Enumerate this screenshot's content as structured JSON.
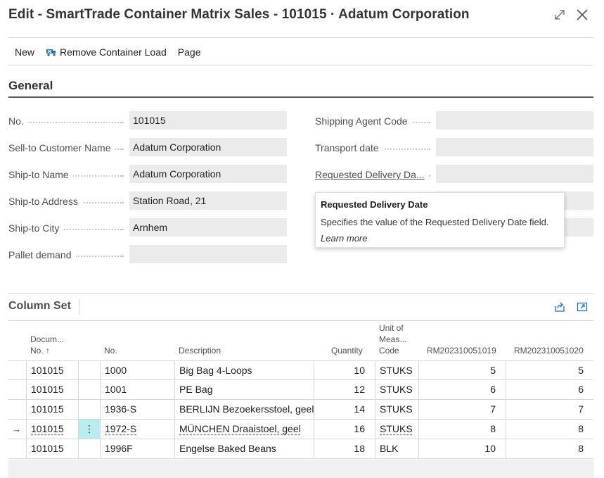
{
  "window": {
    "title": "Edit - SmartTrade Container Matrix Sales - 101015 · Adatum Corporation",
    "expand_icon": "expand-icon",
    "close_icon": "close-icon"
  },
  "actions": {
    "new_label": "New",
    "remove_container_load_label": "Remove Container Load",
    "page_label": "Page"
  },
  "general": {
    "title": "General",
    "left_fields": [
      {
        "label": "No.",
        "value": "101015"
      },
      {
        "label": "Sell-to Customer Name",
        "value": "Adatum Corporation"
      },
      {
        "label": "Ship-to Name",
        "value": "Adatum Corporation"
      },
      {
        "label": "Ship-to Address",
        "value": "Station Road, 21"
      },
      {
        "label": "Ship-to City",
        "value": "Arnhem"
      },
      {
        "label": "Pallet demand",
        "value": ""
      }
    ],
    "right_fields": [
      {
        "label": "Shipping Agent Code",
        "value": ""
      },
      {
        "label": "Transport date",
        "value": ""
      },
      {
        "label": "Requested Delivery Da...",
        "value": ""
      }
    ]
  },
  "tooltip": {
    "title": "Requested Delivery Date",
    "description": "Specifies the value of the Requested Delivery Date field.",
    "link": "Learn more"
  },
  "column_set": {
    "title": "Column Set",
    "share_icon": "share-icon",
    "open_icon": "open-in-new-window-icon",
    "headers": {
      "doc_no_line1": "Docum...",
      "doc_no_line2": "No. ↑",
      "no": "No.",
      "description": "Description",
      "quantity": "Quantity",
      "uom_line1": "Unit of",
      "uom_line2": "Meas...",
      "uom_line3": "Code",
      "col1": "RM202310051019",
      "col2": "RM202310051020"
    },
    "rows": [
      {
        "doc_no": "101015",
        "no": "1000",
        "description": "Big Bag 4-Loops",
        "quantity": "10",
        "uom": "STUKS",
        "col1": "5",
        "col2": "5"
      },
      {
        "doc_no": "101015",
        "no": "1001",
        "description": "PE Bag",
        "quantity": "12",
        "uom": "STUKS",
        "col1": "6",
        "col2": "6"
      },
      {
        "doc_no": "101015",
        "no": "1936-S",
        "description": "BERLIJN Bezoekersstoel, geel",
        "quantity": "14",
        "uom": "STUKS",
        "col1": "7",
        "col2": "7"
      },
      {
        "doc_no": "101015",
        "no": "1972-S",
        "description": "MÜNCHEN Draaistoel, geel",
        "quantity": "16",
        "uom": "STUKS",
        "col1": "8",
        "col2": "8"
      },
      {
        "doc_no": "101015",
        "no": "1996F",
        "description": "Engelse Baked Beans",
        "quantity": "18",
        "uom": "BLK",
        "col1": "10",
        "col2": "8"
      }
    ],
    "current_row_marker": "→",
    "row_menu_glyph": "⋮"
  }
}
